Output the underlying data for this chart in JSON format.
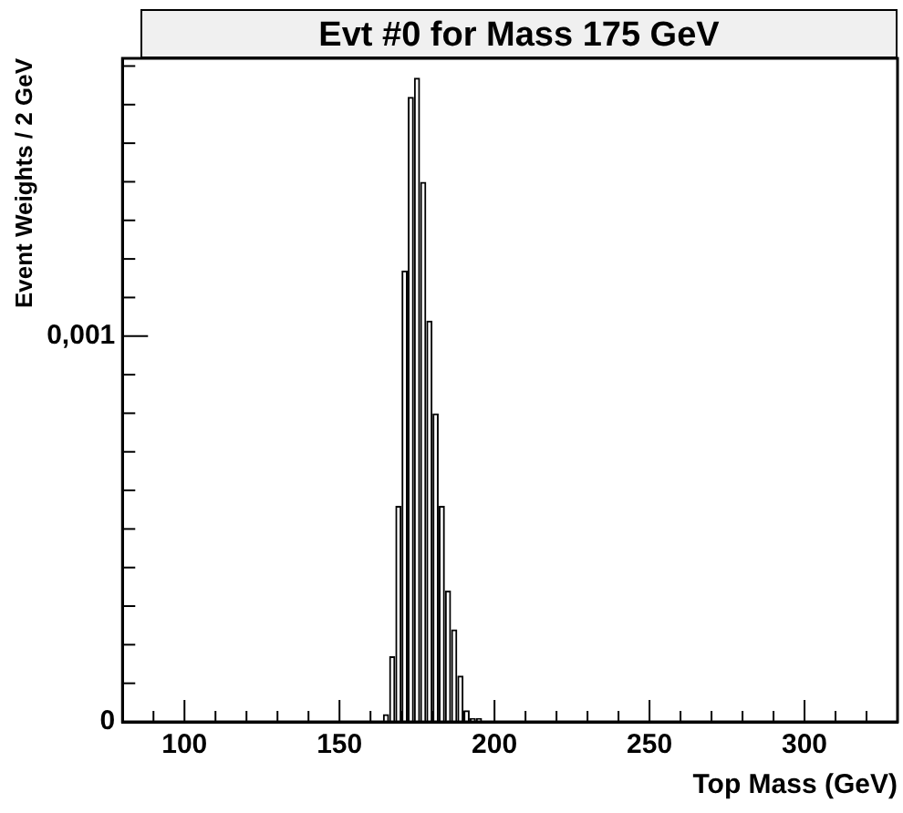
{
  "chart_data": {
    "type": "histogram",
    "title": "Evt #0 for Mass 175 GeV",
    "xlabel": "Top Mass (GeV)",
    "ylabel": "Event Weights / 2 GeV",
    "bins": [
      164,
      166,
      168,
      170,
      172,
      174,
      176,
      178,
      180,
      182,
      184,
      186,
      188,
      190,
      192,
      194,
      196
    ],
    "values": [
      2e-05,
      0.00017,
      0.00056,
      0.00117,
      0.00162,
      0.00167,
      0.0014,
      0.00104,
      0.0008,
      0.00056,
      0.00034,
      0.00024,
      0.00012,
      3e-05,
      1e-05,
      1e-05
    ],
    "color": "#000000",
    "xlim": [
      80,
      330
    ],
    "xticks": [
      {
        "value": 80,
        "label": null
      },
      {
        "value": 90,
        "label": null
      },
      100,
      {
        "value": 110,
        "label": null
      },
      {
        "value": 120,
        "label": null
      },
      {
        "value": 130,
        "label": null
      },
      {
        "value": 140,
        "label": null
      },
      150,
      {
        "value": 160,
        "label": null
      },
      {
        "value": 170,
        "label": null
      },
      {
        "value": 180,
        "label": null
      },
      {
        "value": 190,
        "label": null
      },
      200,
      {
        "value": 210,
        "label": null
      },
      {
        "value": 220,
        "label": null
      },
      {
        "value": 230,
        "label": null
      },
      {
        "value": 240,
        "label": null
      },
      250,
      {
        "value": 260,
        "label": null
      },
      {
        "value": 270,
        "label": null
      },
      {
        "value": 280,
        "label": null
      },
      {
        "value": 290,
        "label": null
      },
      300,
      {
        "value": 310,
        "label": null
      },
      {
        "value": 320,
        "label": null
      }
    ],
    "ylim": [
      0,
      0.00172
    ],
    "yticks": [
      0,
      {
        "value": 0.0001,
        "label": null
      },
      {
        "value": 0.0002,
        "label": null
      },
      {
        "value": 0.0003,
        "label": null
      },
      {
        "value": 0.0004,
        "label": null
      },
      {
        "value": 0.0005,
        "label": null
      },
      {
        "value": 0.0006,
        "label": null
      },
      {
        "value": 0.0007,
        "label": null
      },
      {
        "value": 0.0008,
        "label": null
      },
      {
        "value": 0.0009,
        "label": null
      },
      {
        "value": 0.001,
        "label": "0,001"
      },
      {
        "value": 0.0011,
        "label": null
      },
      {
        "value": 0.0012,
        "label": null
      },
      {
        "value": 0.0013,
        "label": null
      },
      {
        "value": 0.0014,
        "label": null
      },
      {
        "value": 0.0015,
        "label": null
      },
      {
        "value": 0.0016,
        "label": null
      },
      {
        "value": 0.0017,
        "label": null
      }
    ],
    "grid": false,
    "legend": false
  }
}
